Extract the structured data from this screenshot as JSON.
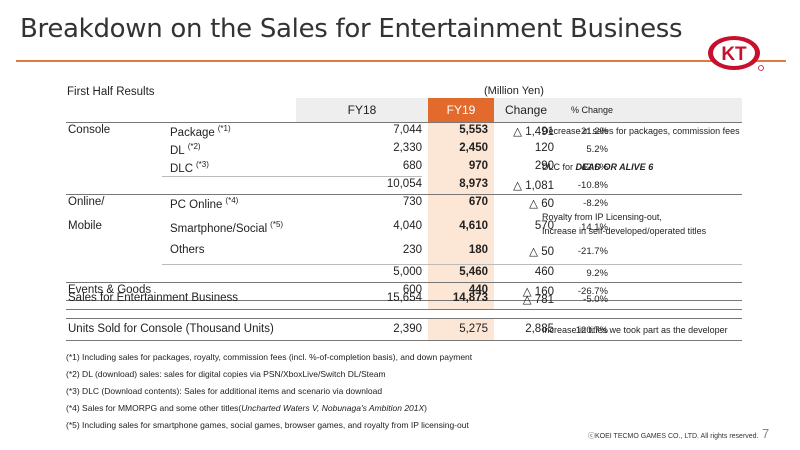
{
  "title": "Breakdown on the Sales for Entertainment Business",
  "subtitle": "First Half Results",
  "unit": "(Million Yen)",
  "headers": {
    "fy18": "FY18",
    "fy19": "FY19",
    "change": "Change",
    "pct": "% Change"
  },
  "categories": {
    "console": "Console",
    "online1": "Online/",
    "online2": "Mobile"
  },
  "rows": {
    "package": {
      "label": "Package",
      "sup": "(*1)",
      "fy18": "7,044",
      "fy19": "5,553",
      "change": "△ 1,491",
      "pct": "-21.2%",
      "note": "Decrease in sales for packages, commission fees"
    },
    "dl": {
      "label": "DL",
      "sup": "(*2)",
      "fy18": "2,330",
      "fy19": "2,450",
      "change": "120",
      "pct": "5.2%"
    },
    "dlc": {
      "label": "DLC",
      "sup": "(*3)",
      "fy18": "680",
      "fy19": "970",
      "change": "290",
      "pct": "42.6%",
      "note_prefix": "DLC for ",
      "note_em": "DEAD OR ALIVE 6"
    },
    "console_total": {
      "fy18": "10,054",
      "fy19": "8,973",
      "change": "△ 1,081",
      "pct": "-10.8%"
    },
    "pc": {
      "label": "PC Online",
      "sup": "(*4)",
      "fy18": "730",
      "fy19": "670",
      "change": "△ 60",
      "pct": "-8.2%"
    },
    "smart": {
      "label": "Smartphone/Social",
      "sup": "(*5)",
      "fy18": "4,040",
      "fy19": "4,610",
      "change": "570",
      "pct": "14.1%",
      "note1": "Royalty from IP Licensing-out,",
      "note2": "Increase in self-developed/operated titles"
    },
    "others": {
      "label": "Others",
      "fy18": "230",
      "fy19": "180",
      "change": "△ 50",
      "pct": "-21.7%"
    },
    "online_total": {
      "fy18": "5,000",
      "fy19": "5,460",
      "change": "460",
      "pct": "9.2%"
    },
    "events": {
      "label": "Events & Goods",
      "fy18": "600",
      "fy19": "440",
      "change": "△ 160",
      "pct": "-26.7%"
    },
    "sales": {
      "label": "Sales for Entertainment Business",
      "fy18": "15,654",
      "fy19": "14,873",
      "change": "△ 781",
      "pct": "-5.0%"
    },
    "units": {
      "label": "Units Sold for Console (Thousand Units)",
      "fy18": "2,390",
      "fy19": "5,275",
      "change": "2,885",
      "pct": "120.7%",
      "note": "Increase in titles we took part as the developer"
    }
  },
  "footnotes": {
    "f1": "(*1) Including sales for packages, royalty, commission fees (incl. %-of-completion basis), and down payment",
    "f2": "(*2) DL (download) sales: sales for digital copies via PSN/XboxLive/Switch DL/Steam",
    "f3": "(*3) DLC (Download contents): Sales for additional items and scenario via download",
    "f4_prefix": "(*4) Sales for MMORPG and some other titles(",
    "f4_em": "Uncharted Waters V, Nobunaga's Ambition 201X",
    "f4_suffix": ")",
    "f5": "(*5) Including sales for smartphone games, social games, browser games, and royalty from IP licensing-out"
  },
  "logo_text": "KT",
  "copyright": "ⓒKOEI TECMO GAMES CO., LTD.  All rights reserved.",
  "page_number": "7",
  "colors": {
    "accent": "#e26a2c",
    "fy19_fill": "#fce6d5",
    "rule": "#e07a45",
    "logo": "#c8102e"
  }
}
